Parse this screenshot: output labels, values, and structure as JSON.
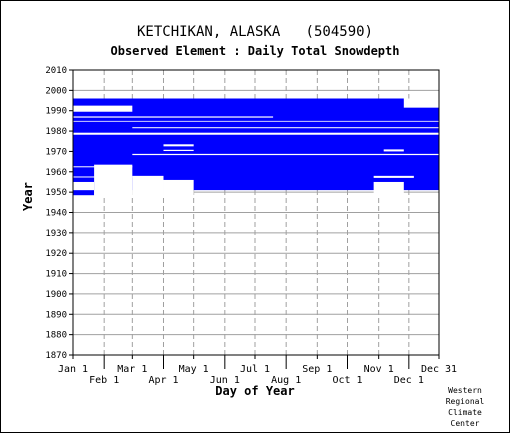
{
  "chart_data": {
    "type": "heatmap",
    "title": "KETCHIKAN, ALASKA   (504590)",
    "subtitle": "Observed Element : Daily Total Snowdepth",
    "xlabel": "Day of Year",
    "ylabel": "Year",
    "ylim": [
      1870,
      2010
    ],
    "xlim": [
      1,
      365
    ],
    "y_ticks": [
      1870,
      1880,
      1890,
      1900,
      1910,
      1920,
      1930,
      1940,
      1950,
      1960,
      1970,
      1980,
      1990,
      2000,
      2010
    ],
    "x_ticks": [
      {
        "label": "Jan 1",
        "day": 1,
        "row": 1
      },
      {
        "label": "Feb 1",
        "day": 32,
        "row": 2
      },
      {
        "label": "Mar 1",
        "day": 60,
        "row": 1
      },
      {
        "label": "Apr 1",
        "day": 91,
        "row": 2
      },
      {
        "label": "May 1",
        "day": 121,
        "row": 1
      },
      {
        "label": "Jun 1",
        "day": 152,
        "row": 2
      },
      {
        "label": "Jul 1",
        "day": 182,
        "row": 1
      },
      {
        "label": "Aug 1",
        "day": 213,
        "row": 2
      },
      {
        "label": "Sep 1",
        "day": 244,
        "row": 1
      },
      {
        "label": "Oct 1",
        "day": 274,
        "row": 2
      },
      {
        "label": "Nov 1",
        "day": 305,
        "row": 1
      },
      {
        "label": "Dec 1",
        "day": 335,
        "row": 2
      },
      {
        "label": "Dec 31",
        "day": 365,
        "row": 1
      }
    ],
    "grid": true,
    "series_color": "#0000ff",
    "observed_periods": [
      {
        "day_start": 1,
        "day_end": 365,
        "year_start": 1951,
        "year_end": 1996
      },
      {
        "day_start": 1,
        "day_end": 22,
        "year_start": 1948.5,
        "year_end": 1951
      }
    ],
    "gaps": [
      {
        "day_start": 1,
        "day_end": 22,
        "year_start": 1951,
        "year_end": 1955
      },
      {
        "day_start": 22,
        "day_end": 60,
        "year_start": 1948.5,
        "year_end": 1963.5
      },
      {
        "day_start": 60,
        "day_end": 91,
        "year_start": 1948.5,
        "year_end": 1958
      },
      {
        "day_start": 91,
        "day_end": 121,
        "year_start": 1948.5,
        "year_end": 1956
      },
      {
        "day_start": 300,
        "day_end": 330,
        "year_start": 1948.5,
        "year_end": 1955
      },
      {
        "day_start": 1,
        "day_end": 60,
        "year_start": 1989.5,
        "year_end": 1992.5
      },
      {
        "day_start": 330,
        "day_end": 365,
        "year_start": 1991.5,
        "year_end": 1996
      },
      {
        "day_start": 1,
        "day_end": 365,
        "year_start": 1978.2,
        "year_end": 1979.2
      },
      {
        "day_start": 1,
        "day_end": 200,
        "year_start": 1986.6,
        "year_end": 1987.2
      },
      {
        "day_start": 1,
        "day_end": 365,
        "year_start": 1984.6,
        "year_end": 1985.0
      },
      {
        "day_start": 60,
        "day_end": 365,
        "year_start": 1981.4,
        "year_end": 1981.9
      },
      {
        "day_start": 91,
        "day_end": 121,
        "year_start": 1972.5,
        "year_end": 1973.5
      },
      {
        "day_start": 91,
        "day_end": 121,
        "year_start": 1970.2,
        "year_end": 1970.8
      },
      {
        "day_start": 60,
        "day_end": 365,
        "year_start": 1968.2,
        "year_end": 1968.8
      },
      {
        "day_start": 1,
        "day_end": 60,
        "year_start": 1962.2,
        "year_end": 1962.7
      },
      {
        "day_start": 1,
        "day_end": 60,
        "year_start": 1957.2,
        "year_end": 1957.7
      },
      {
        "day_start": 310,
        "day_end": 330,
        "year_start": 1970,
        "year_end": 1971
      },
      {
        "day_start": 300,
        "day_end": 340,
        "year_start": 1957,
        "year_end": 1958
      }
    ]
  },
  "credit": {
    "line1": "Western",
    "line2": "Regional",
    "line3": "Climate",
    "line4": "Center"
  }
}
